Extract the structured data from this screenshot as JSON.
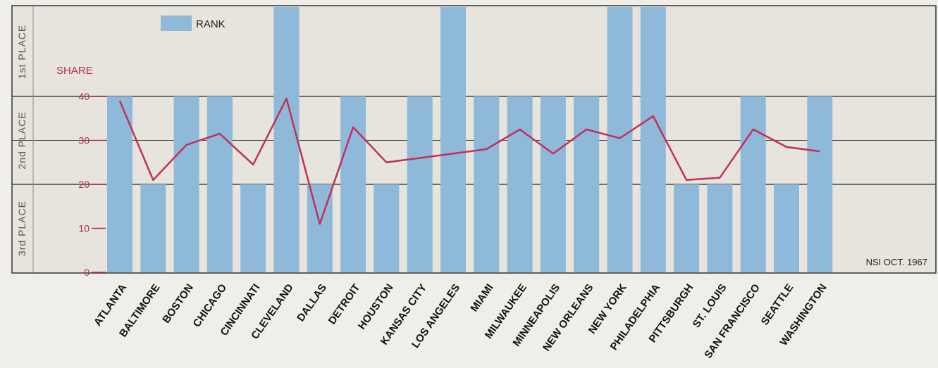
{
  "chart_data": {
    "type": "bar",
    "categories": [
      "ATLANTA",
      "BALTIMORE",
      "BOSTON",
      "CHICAGO",
      "CINCINNATI",
      "CLEVELAND",
      "DALLAS",
      "DETROIT",
      "HOUSTON",
      "KANSAS CITY",
      "LOS ANGELES",
      "MIAMI",
      "MILWAUKEE",
      "MINNEAPOLIS",
      "NEW ORLEANS",
      "NEW YORK",
      "PHILADELPHIA",
      "PITTSBURGH",
      "ST. LOUIS",
      "SAN FRANCISCO",
      "SEATTLE",
      "WASHINGTON"
    ],
    "series": [
      {
        "name": "RANK",
        "kind": "bar",
        "color": "#8fb9d8",
        "values": [
          2,
          3,
          2,
          2,
          3,
          1,
          3,
          2,
          3,
          2,
          1,
          2,
          2,
          2,
          2,
          1,
          1,
          3,
          3,
          2,
          3,
          2
        ]
      },
      {
        "name": "SHARE",
        "kind": "line",
        "color": "#c0305a",
        "values": [
          39,
          21,
          29,
          31.5,
          24.5,
          39.5,
          11,
          33,
          25,
          26,
          27,
          28,
          32.5,
          27,
          32.5,
          30.5,
          35.5,
          21,
          21.5,
          32.5,
          28.5,
          27.5
        ]
      }
    ],
    "ylim": [
      0,
      60
    ],
    "y_ticks": [
      "0",
      "10",
      "20",
      "30",
      "40"
    ],
    "place_bands": [
      {
        "label": "3rd PLACE",
        "rank": 3
      },
      {
        "label": "2nd PLACE",
        "rank": 2
      },
      {
        "label": "1st PLACE",
        "rank": 1
      }
    ],
    "legend": {
      "bar_label": "RANK",
      "line_label": "SHARE",
      "placement": "top-left"
    },
    "source_note": "NSI OCT. 1967",
    "grid": true
  }
}
